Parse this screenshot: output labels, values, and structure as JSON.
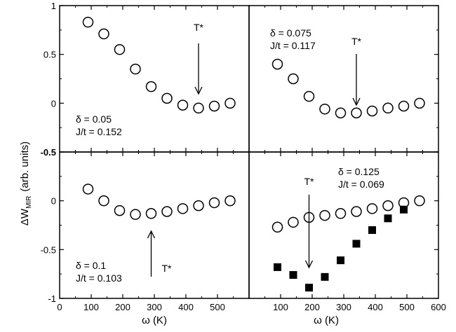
{
  "chart_data": [
    {
      "type": "scatter",
      "panel": "top-left",
      "annotation": {
        "line1": "δ = 0.05",
        "line2": "J/t = 0.152",
        "marker": "T*",
        "marker_x": 440
      },
      "xlim": [
        0,
        600
      ],
      "ylim": [
        -0.5,
        1
      ],
      "yticks": [
        "1",
        "0.5",
        "0",
        "-0.5"
      ],
      "series": [
        {
          "marker": "open-circle",
          "x": [
            90,
            140,
            190,
            240,
            290,
            340,
            390,
            440,
            490,
            540
          ],
          "y": [
            0.83,
            0.71,
            0.55,
            0.35,
            0.17,
            0.05,
            -0.02,
            -0.05,
            -0.03,
            0.0
          ]
        }
      ]
    },
    {
      "type": "scatter",
      "panel": "top-right",
      "annotation": {
        "line1": "δ = 0.075",
        "line2": "J/t = 0.117",
        "marker": "T*",
        "marker_x": 340
      },
      "xlim": [
        0,
        600
      ],
      "ylim": [
        -0.5,
        1
      ],
      "series": [
        {
          "marker": "open-circle",
          "x": [
            90,
            140,
            190,
            240,
            290,
            340,
            390,
            440,
            490,
            540
          ],
          "y": [
            0.4,
            0.25,
            0.07,
            -0.06,
            -0.1,
            -0.1,
            -0.08,
            -0.05,
            -0.03,
            0.0
          ]
        }
      ]
    },
    {
      "type": "scatter",
      "panel": "bottom-left",
      "annotation": {
        "line1": "δ = 0.1",
        "line2": "J/t = 0.103",
        "marker": "T*",
        "marker_x": 290
      },
      "xlim": [
        0,
        600
      ],
      "ylim": [
        -1,
        0.5
      ],
      "yticks": [
        "0",
        "-0.5",
        "-1"
      ],
      "xticks": [
        "0",
        "100",
        "200",
        "300",
        "400",
        "500"
      ],
      "xlabel": "ω (K)",
      "series": [
        {
          "marker": "open-circle",
          "x": [
            90,
            140,
            190,
            240,
            290,
            340,
            390,
            440,
            490,
            540
          ],
          "y": [
            0.12,
            0.0,
            -0.1,
            -0.14,
            -0.13,
            -0.11,
            -0.08,
            -0.05,
            -0.02,
            0.0
          ]
        }
      ]
    },
    {
      "type": "scatter",
      "panel": "bottom-right",
      "annotation": {
        "line1": "δ = 0.125",
        "line2": "J/t = 0.069",
        "marker": "T*",
        "marker_x": 190
      },
      "xlim": [
        0,
        600
      ],
      "ylim": [
        -1,
        0.5
      ],
      "xticks": [
        "100",
        "200",
        "300",
        "400",
        "500",
        "600"
      ],
      "xlabel": "ω (K)",
      "series": [
        {
          "marker": "open-circle",
          "x": [
            90,
            140,
            190,
            240,
            290,
            340,
            390,
            440,
            490,
            540
          ],
          "y": [
            -0.27,
            -0.22,
            -0.17,
            -0.15,
            -0.13,
            -0.11,
            -0.08,
            -0.05,
            -0.02,
            0.0
          ]
        },
        {
          "marker": "filled-square",
          "x": [
            90,
            140,
            190,
            240,
            290,
            340,
            390,
            440,
            490
          ],
          "y": [
            -0.68,
            -0.76,
            -0.89,
            -0.78,
            -0.61,
            -0.44,
            -0.3,
            -0.18,
            -0.09
          ]
        }
      ]
    }
  ],
  "shared": {
    "ylabel_main": "ΔW",
    "ylabel_sub": "MIR",
    "ylabel_unit": "(arb. units)"
  }
}
